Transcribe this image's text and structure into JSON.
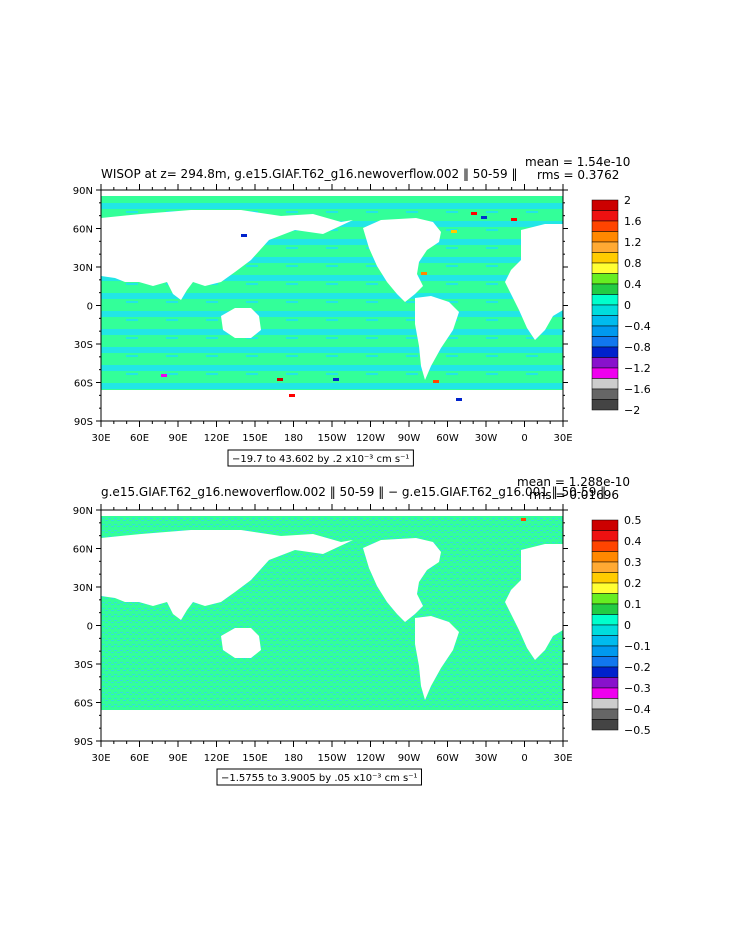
{
  "panels": [
    {
      "title": "WISOP at z= 294.8m, g.e15.GIAF.T62_g16.newoverflow.002 ‖ 50-59 ‖",
      "mean_label": "mean = 1.54e-10",
      "rms_label": "rms = 0.3762",
      "range_label": "−19.7 to 43.602 by .2 x10⁻³ cm s⁻¹",
      "lat_labels": [
        "90N",
        "60N",
        "30N",
        "0",
        "30S",
        "60S",
        "90S"
      ],
      "lon_labels": [
        "30E",
        "60E",
        "90E",
        "120E",
        "150E",
        "180",
        "150W",
        "120W",
        "90W",
        "60W",
        "30W",
        "0",
        "30E"
      ],
      "colorbar_labels": [
        "2",
        "1.6",
        "1.2",
        "0.8",
        "0.4",
        "0",
        "−0.4",
        "−0.8",
        "−1.2",
        "−1.6",
        "−2"
      ]
    },
    {
      "title": "g.e15.GIAF.T62_g16.newoverflow.002 ‖ 50-59 ‖ − g.e15.GIAF.T62_g16.001 ‖ 50-59 ‖",
      "mean_label": "mean = 1.288e-10",
      "rms_label": "rms = 0.01696",
      "range_label": "−1.5755 to 3.9005 by .05 x10⁻³ cm s⁻¹",
      "lat_labels": [
        "90N",
        "60N",
        "30N",
        "0",
        "30S",
        "60S",
        "90S"
      ],
      "lon_labels": [
        "30E",
        "60E",
        "90E",
        "120E",
        "150E",
        "180",
        "150W",
        "120W",
        "90W",
        "60W",
        "30W",
        "0",
        "30E"
      ],
      "colorbar_labels": [
        "0.5",
        "0.4",
        "0.3",
        "0.2",
        "0.1",
        "0",
        "−0.1",
        "−0.2",
        "−0.3",
        "−0.4",
        "−0.5"
      ]
    }
  ],
  "colors": {
    "ocean_top": "#33ff99",
    "ocean_top_band": "#22e6e6",
    "ocean_bottom": "#33ff99",
    "ocean_bottom_band": "#33dddd",
    "colorbar": [
      "#cc0000",
      "#ee1111",
      "#ff4400",
      "#ff8800",
      "#ffaa33",
      "#ffcc00",
      "#ffff33",
      "#66ee22",
      "#22cc44",
      "#00ffcc",
      "#00dddd",
      "#00bbee",
      "#0099ee",
      "#1177ee",
      "#0022cc",
      "#8811cc",
      "#ee00ee",
      "#cccccc",
      "#666666",
      "#444444"
    ]
  }
}
